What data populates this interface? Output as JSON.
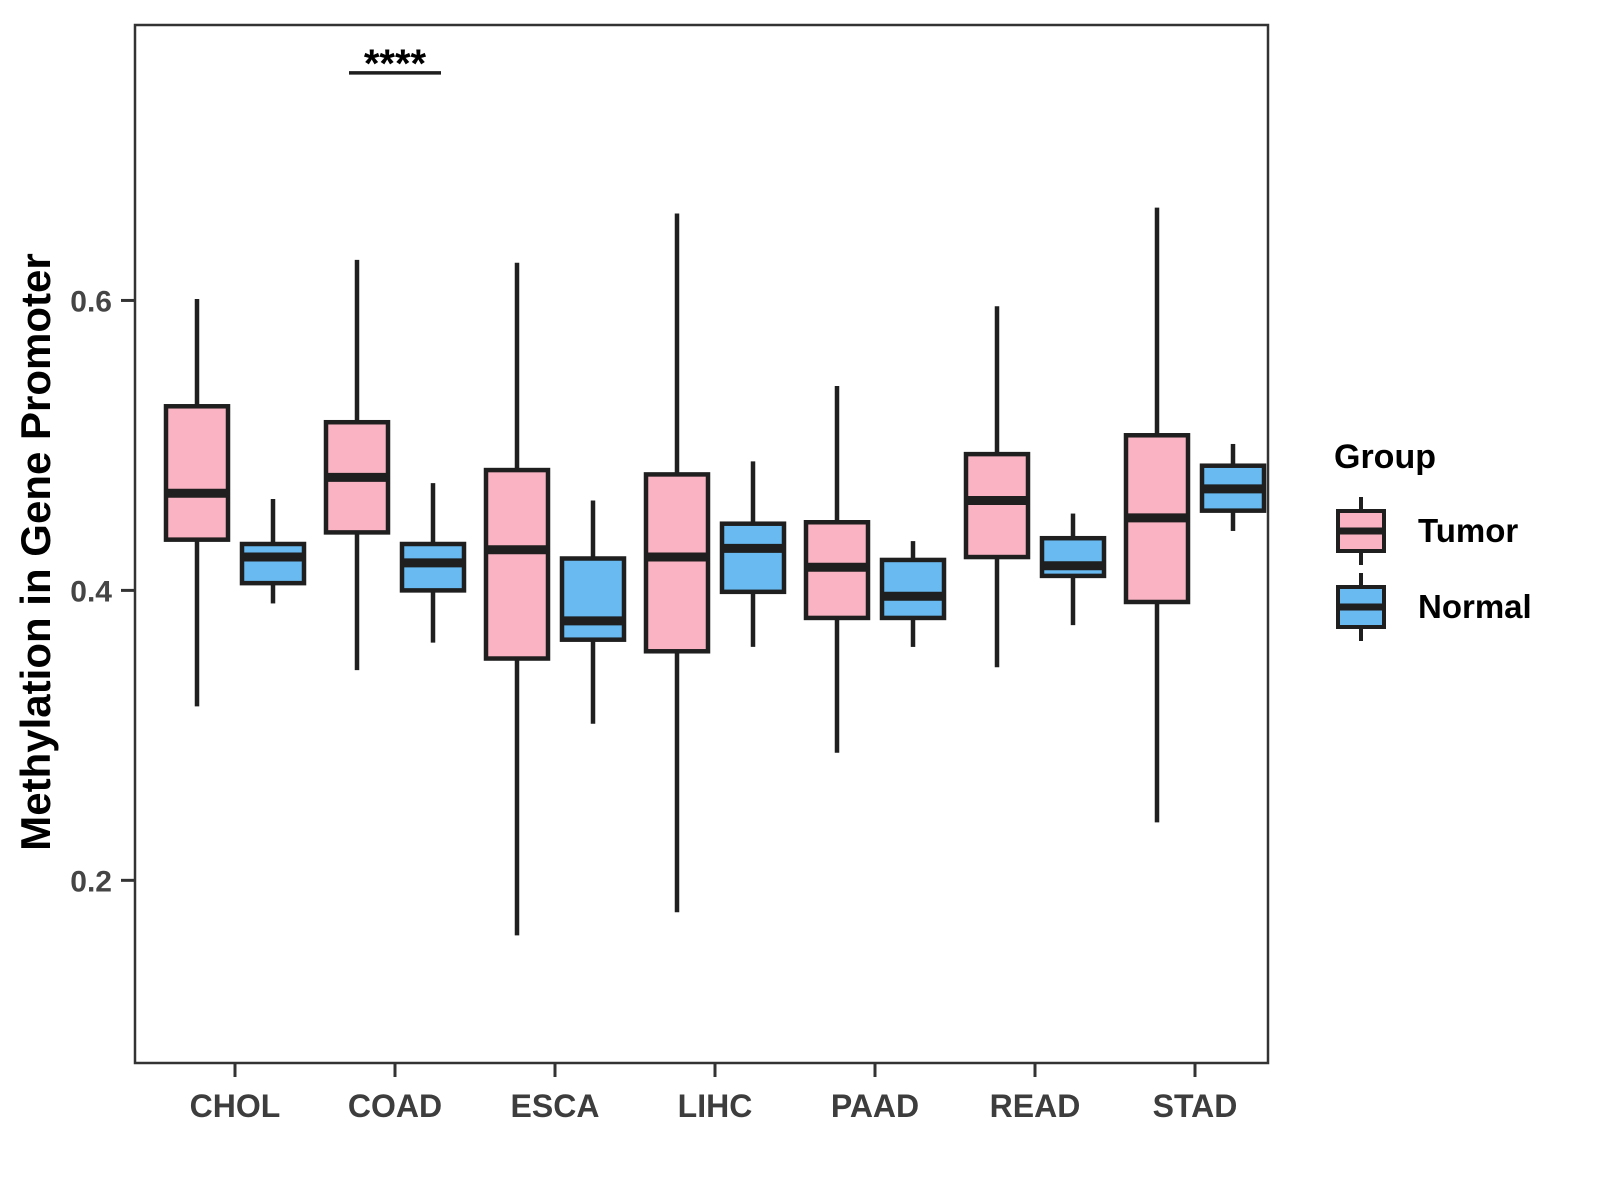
{
  "chart_data": {
    "type": "boxplot",
    "title": "",
    "xlabel": "",
    "ylabel": "Methylation in Gene Promoter",
    "ylim": [
      0.074,
      0.79
    ],
    "grid": false,
    "yticks": [
      {
        "value": 0.2,
        "label": "0.2"
      },
      {
        "value": 0.4,
        "label": "0.4"
      },
      {
        "value": 0.6,
        "label": "0.6"
      }
    ],
    "categories": [
      "CHOL",
      "COAD",
      "ESCA",
      "LIHC",
      "PAAD",
      "READ",
      "STAD"
    ],
    "series": [
      {
        "name": "Tumor",
        "color": "#F9B3C2",
        "stats": [
          {
            "low": 0.32,
            "q1": 0.435,
            "median": 0.467,
            "q3": 0.527,
            "high": 0.601
          },
          {
            "low": 0.345,
            "q1": 0.44,
            "median": 0.478,
            "q3": 0.516,
            "high": 0.628
          },
          {
            "low": 0.162,
            "q1": 0.353,
            "median": 0.428,
            "q3": 0.483,
            "high": 0.626
          },
          {
            "low": 0.178,
            "q1": 0.358,
            "median": 0.423,
            "q3": 0.48,
            "high": 0.66
          },
          {
            "low": 0.288,
            "q1": 0.381,
            "median": 0.416,
            "q3": 0.447,
            "high": 0.541
          },
          {
            "low": 0.347,
            "q1": 0.423,
            "median": 0.462,
            "q3": 0.494,
            "high": 0.596
          },
          {
            "low": 0.24,
            "q1": 0.392,
            "median": 0.45,
            "q3": 0.507,
            "high": 0.664
          }
        ]
      },
      {
        "name": "Normal",
        "color": "#68BAF0",
        "stats": [
          {
            "low": 0.391,
            "q1": 0.405,
            "median": 0.423,
            "q3": 0.432,
            "high": 0.463
          },
          {
            "low": 0.364,
            "q1": 0.4,
            "median": 0.419,
            "q3": 0.432,
            "high": 0.474
          },
          {
            "low": 0.308,
            "q1": 0.366,
            "median": 0.379,
            "q3": 0.422,
            "high": 0.462
          },
          {
            "low": 0.361,
            "q1": 0.399,
            "median": 0.429,
            "q3": 0.446,
            "high": 0.489
          },
          {
            "low": 0.361,
            "q1": 0.381,
            "median": 0.396,
            "q3": 0.421,
            "high": 0.434
          },
          {
            "low": 0.376,
            "q1": 0.41,
            "median": 0.417,
            "q3": 0.436,
            "high": 0.453
          },
          {
            "low": 0.441,
            "q1": 0.455,
            "median": 0.47,
            "q3": 0.486,
            "high": 0.501
          }
        ]
      }
    ],
    "annotation": {
      "text": "****",
      "category": "COAD",
      "y_value": 0.757
    },
    "legend": {
      "title": "Group",
      "position": "right",
      "entries": [
        "Tumor",
        "Normal"
      ]
    },
    "colors": {
      "tumor_fill": "#F9B3C2",
      "normal_fill": "#68BAF0",
      "line": "#1f1f1f",
      "frame": "#333333",
      "tick_label": "#454545"
    }
  }
}
